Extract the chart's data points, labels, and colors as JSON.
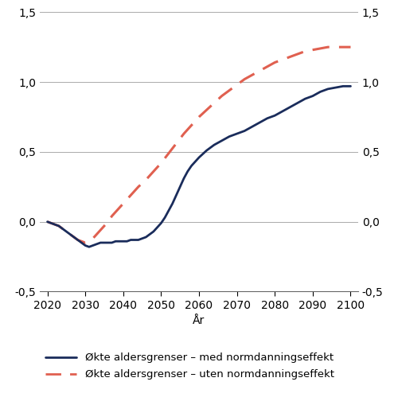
{
  "title": "",
  "xlabel": "År",
  "xlim": [
    2018,
    2102
  ],
  "ylim": [
    -0.5,
    1.5
  ],
  "yticks": [
    -0.5,
    0.0,
    0.5,
    1.0,
    1.5
  ],
  "xticks": [
    2020,
    2030,
    2040,
    2050,
    2060,
    2070,
    2080,
    2090,
    2100
  ],
  "line1_label": "Økte aldersgrenser – med normdanningseffekt",
  "line2_label": "Økte aldersgrenser – uten normdanningseffekt",
  "line1_color": "#1a2c5b",
  "line2_color": "#e06050",
  "background_color": "#ffffff",
  "line1_x": [
    2020,
    2021,
    2022,
    2023,
    2024,
    2025,
    2026,
    2027,
    2028,
    2029,
    2030,
    2031,
    2032,
    2033,
    2034,
    2035,
    2036,
    2037,
    2038,
    2039,
    2040,
    2041,
    2042,
    2043,
    2044,
    2045,
    2046,
    2047,
    2048,
    2049,
    2050,
    2051,
    2052,
    2053,
    2054,
    2055,
    2056,
    2057,
    2058,
    2059,
    2060,
    2062,
    2064,
    2066,
    2068,
    2070,
    2072,
    2074,
    2076,
    2078,
    2080,
    2082,
    2084,
    2086,
    2088,
    2090,
    2092,
    2094,
    2096,
    2098,
    2100
  ],
  "line1_y": [
    0.0,
    -0.01,
    -0.02,
    -0.03,
    -0.05,
    -0.07,
    -0.09,
    -0.11,
    -0.13,
    -0.15,
    -0.17,
    -0.18,
    -0.17,
    -0.16,
    -0.15,
    -0.15,
    -0.15,
    -0.15,
    -0.14,
    -0.14,
    -0.14,
    -0.14,
    -0.13,
    -0.13,
    -0.13,
    -0.12,
    -0.11,
    -0.09,
    -0.07,
    -0.04,
    -0.01,
    0.03,
    0.08,
    0.13,
    0.19,
    0.25,
    0.31,
    0.36,
    0.4,
    0.43,
    0.46,
    0.51,
    0.55,
    0.58,
    0.61,
    0.63,
    0.65,
    0.68,
    0.71,
    0.74,
    0.76,
    0.79,
    0.82,
    0.85,
    0.88,
    0.9,
    0.93,
    0.95,
    0.96,
    0.97,
    0.97
  ],
  "line2_x": [
    2020,
    2021,
    2022,
    2023,
    2024,
    2025,
    2026,
    2027,
    2028,
    2029,
    2030,
    2031,
    2032,
    2033,
    2034,
    2035,
    2036,
    2037,
    2038,
    2039,
    2040,
    2042,
    2044,
    2046,
    2048,
    2050,
    2052,
    2054,
    2056,
    2058,
    2060,
    2062,
    2064,
    2066,
    2068,
    2070,
    2072,
    2074,
    2076,
    2078,
    2080,
    2082,
    2084,
    2086,
    2088,
    2090,
    2092,
    2094,
    2096,
    2098,
    2100
  ],
  "line2_y": [
    0.0,
    -0.01,
    -0.02,
    -0.03,
    -0.05,
    -0.07,
    -0.09,
    -0.11,
    -0.13,
    -0.14,
    -0.15,
    -0.14,
    -0.12,
    -0.09,
    -0.06,
    -0.03,
    0.0,
    0.04,
    0.07,
    0.1,
    0.13,
    0.19,
    0.25,
    0.3,
    0.36,
    0.42,
    0.49,
    0.56,
    0.63,
    0.69,
    0.75,
    0.8,
    0.85,
    0.9,
    0.94,
    0.98,
    1.02,
    1.05,
    1.08,
    1.11,
    1.14,
    1.16,
    1.18,
    1.2,
    1.22,
    1.23,
    1.24,
    1.25,
    1.25,
    1.25,
    1.25
  ],
  "grid_color": "#aaaaaa",
  "tick_fontsize": 10,
  "legend_fontsize": 9.5
}
